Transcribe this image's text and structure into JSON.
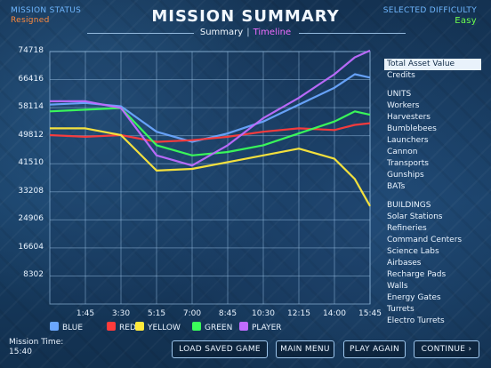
{
  "header": {
    "mission_status_label": "MISSION STATUS",
    "mission_status_value": "Resigned",
    "title": "MISSION SUMMARY",
    "difficulty_label": "SELECTED DIFFICULTY",
    "difficulty_value": "Easy"
  },
  "tabs": {
    "summary": "Summary",
    "separator": "|",
    "timeline": "Timeline",
    "active": "Timeline"
  },
  "chart_data": {
    "type": "line",
    "xlabel": "",
    "ylabel": "",
    "x_ticks": [
      "1:45",
      "3:30",
      "5:15",
      "7:00",
      "8:45",
      "10:30",
      "12:15",
      "14:00",
      "15:45"
    ],
    "y_ticks": [
      8302,
      16604,
      24906,
      33208,
      41510,
      49812,
      58114,
      66416,
      74718
    ],
    "x_range_minutes": [
      0,
      15.75
    ],
    "y_range": [
      0,
      74718
    ],
    "grid": true,
    "legend_position": "bottom",
    "x": [
      0,
      1.75,
      3.5,
      5.25,
      7.0,
      8.75,
      10.5,
      12.25,
      14.0,
      15.0,
      15.75
    ],
    "series": [
      {
        "name": "BLUE",
        "color": "#6aa7ff",
        "values": [
          59000,
          59500,
          58500,
          51000,
          48000,
          50500,
          54000,
          59000,
          64000,
          68000,
          67000
        ]
      },
      {
        "name": "RED",
        "color": "#ff3b3b",
        "values": [
          50000,
          49500,
          50000,
          48000,
          48500,
          49500,
          51000,
          52000,
          51500,
          53000,
          53500
        ]
      },
      {
        "name": "YELLOW",
        "color": "#ffe93b",
        "values": [
          52000,
          52000,
          50000,
          39500,
          40000,
          42000,
          44000,
          46000,
          43000,
          37000,
          29000
        ]
      },
      {
        "name": "GREEN",
        "color": "#3bff5a",
        "values": [
          57000,
          57500,
          58000,
          47000,
          44000,
          45000,
          47000,
          50500,
          54000,
          57000,
          56000
        ]
      },
      {
        "name": "PLAYER",
        "color": "#c06bff",
        "values": [
          60000,
          60000,
          58000,
          44000,
          41000,
          47000,
          55000,
          61000,
          68000,
          73000,
          75000
        ]
      }
    ]
  },
  "sidebar": {
    "selected": "Total Asset Value",
    "top": [
      "Total Asset Value",
      "Credits"
    ],
    "units_header": "UNITS",
    "units": [
      "Workers",
      "Harvesters",
      "Bumblebees",
      "Launchers",
      "Cannon",
      "Transports",
      "Gunships",
      "BATs"
    ],
    "buildings_header": "BUILDINGS",
    "buildings": [
      "Solar Stations",
      "Refineries",
      "Command Centers",
      "Science Labs",
      "Airbases",
      "Recharge Pads",
      "Walls",
      "Energy Gates",
      "Turrets",
      "Electro Turrets"
    ]
  },
  "footer": {
    "mission_time_label": "Mission Time:",
    "mission_time_value": "15:40",
    "buttons": [
      "LOAD SAVED GAME",
      "MAIN MENU",
      "PLAY AGAIN",
      "CONTINUE"
    ],
    "continue_arrow": "›"
  }
}
